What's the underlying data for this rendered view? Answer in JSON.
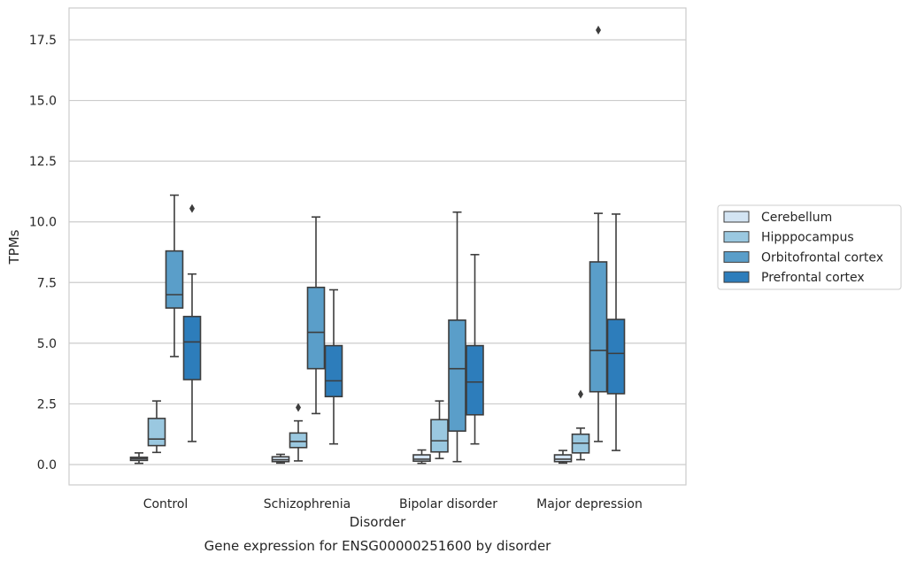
{
  "chart_data": {
    "type": "box",
    "caption": "Gene expression for ENSG00000251600 by disorder",
    "xlabel": "Disorder",
    "ylabel": "TPMs",
    "ylim": [
      -0.85,
      18.8
    ],
    "yticks": [
      "0.0",
      "2.5",
      "5.0",
      "7.5",
      "10.0",
      "12.5",
      "15.0",
      "17.5"
    ],
    "grid": "horizontal",
    "legend_position": "right",
    "categories": [
      "Control",
      "Schizophrenia",
      "Bipolar disorder",
      "Major depression"
    ],
    "series": [
      {
        "name": "Cerebellum",
        "color": "#d3e4f3",
        "boxes": [
          {
            "whislo": 0.05,
            "q1": 0.17,
            "med": 0.24,
            "q3": 0.3,
            "whishi": 0.48,
            "fliers": []
          },
          {
            "whislo": 0.06,
            "q1": 0.12,
            "med": 0.2,
            "q3": 0.32,
            "whishi": 0.42,
            "fliers": []
          },
          {
            "whislo": 0.05,
            "q1": 0.14,
            "med": 0.22,
            "q3": 0.4,
            "whishi": 0.6,
            "fliers": []
          },
          {
            "whislo": 0.06,
            "q1": 0.12,
            "med": 0.22,
            "q3": 0.4,
            "whishi": 0.58,
            "fliers": []
          }
        ]
      },
      {
        "name": "Hipppocampus",
        "color": "#9ac8e0",
        "boxes": [
          {
            "whislo": 0.5,
            "q1": 0.78,
            "med": 1.05,
            "q3": 1.9,
            "whishi": 2.62,
            "fliers": []
          },
          {
            "whislo": 0.15,
            "q1": 0.7,
            "med": 0.95,
            "q3": 1.3,
            "whishi": 1.8,
            "fliers": [
              2.35
            ]
          },
          {
            "whislo": 0.25,
            "q1": 0.52,
            "med": 0.98,
            "q3": 1.85,
            "whishi": 2.62,
            "fliers": []
          },
          {
            "whislo": 0.2,
            "q1": 0.48,
            "med": 0.88,
            "q3": 1.25,
            "whishi": 1.5,
            "fliers": [
              2.9
            ]
          }
        ]
      },
      {
        "name": "Orbitofrontal cortex",
        "color": "#5a9ec9",
        "boxes": [
          {
            "whislo": 4.45,
            "q1": 6.45,
            "med": 7.0,
            "q3": 8.8,
            "whishi": 11.1,
            "fliers": []
          },
          {
            "whislo": 2.1,
            "q1": 3.95,
            "med": 5.45,
            "q3": 7.3,
            "whishi": 10.2,
            "fliers": []
          },
          {
            "whislo": 0.12,
            "q1": 1.38,
            "med": 3.95,
            "q3": 5.95,
            "whishi": 10.4,
            "fliers": []
          },
          {
            "whislo": 0.95,
            "q1": 3.0,
            "med": 4.7,
            "q3": 8.35,
            "whishi": 10.35,
            "fliers": [
              17.9
            ]
          }
        ]
      },
      {
        "name": "Prefrontal cortex",
        "color": "#2d7dbb",
        "boxes": [
          {
            "whislo": 0.95,
            "q1": 3.5,
            "med": 5.05,
            "q3": 6.1,
            "whishi": 7.85,
            "fliers": [
              10.55
            ]
          },
          {
            "whislo": 0.85,
            "q1": 2.8,
            "med": 3.45,
            "q3": 4.9,
            "whishi": 7.2,
            "fliers": []
          },
          {
            "whislo": 0.85,
            "q1": 2.05,
            "med": 3.4,
            "q3": 4.9,
            "whishi": 8.65,
            "fliers": []
          },
          {
            "whislo": 0.58,
            "q1": 2.92,
            "med": 4.58,
            "q3": 5.98,
            "whishi": 10.32,
            "fliers": []
          }
        ]
      }
    ]
  }
}
